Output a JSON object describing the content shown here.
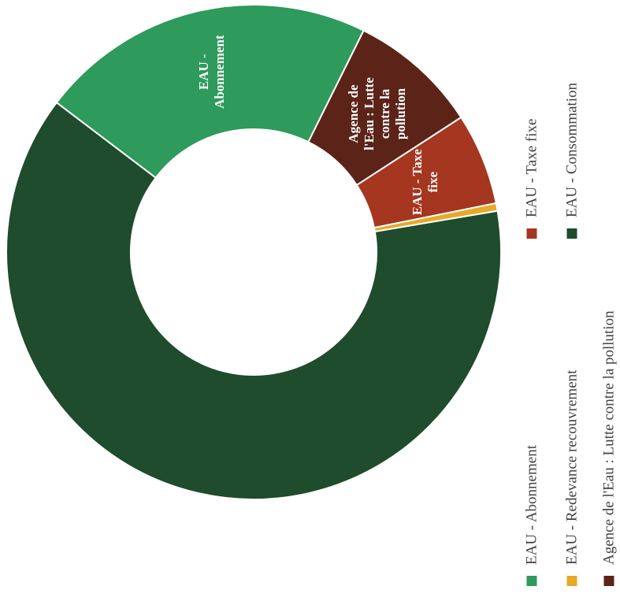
{
  "chart_data": {
    "type": "pie",
    "donut": true,
    "title": "",
    "legend_position": "right",
    "categories": [
      "EAU - Consommation",
      "EAU - Abonnement",
      "Agence de l'Eau : Lutte contre la pollution",
      "EAU - Taxe fixe",
      "EAU - Redevance recouvrement"
    ],
    "values": [
      63.0,
      22.0,
      8.5,
      6.0,
      0.5
    ],
    "colors": [
      "#1e4c2c",
      "#2e9a5b",
      "#5c2318",
      "#a5361f",
      "#e6a92a"
    ],
    "slice_labels": [
      [],
      [
        "EAU -",
        "Abonnement"
      ],
      [
        "Agence de",
        "l'Eau : Lutte",
        "contre la",
        "pollution"
      ],
      [
        "EAU - Taxe",
        "fixe"
      ],
      []
    ],
    "legend": [
      {
        "label": "EAU - Abonnement",
        "color": "#2e9a5b"
      },
      {
        "label": "EAU - Redevance recouvrement",
        "color": "#e6a92a"
      },
      {
        "label": "Agence de l'Eau : Lutte contre la pollution",
        "color": "#5c2318"
      },
      {
        "label": "EAU - Taxe fixe",
        "color": "#a5361f"
      },
      {
        "label": "EAU - Consommation",
        "color": "#1e4c2c"
      }
    ]
  }
}
